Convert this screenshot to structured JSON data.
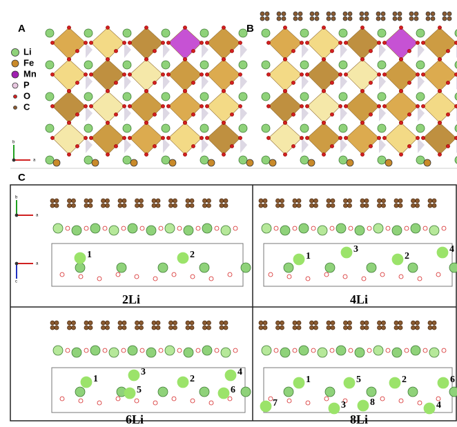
{
  "panels": {
    "A": "A",
    "B": "B",
    "C": "C"
  },
  "legend": [
    "Li",
    "Fe",
    "Mn",
    "P",
    "O",
    "C"
  ],
  "axes_A": {
    "b": "b",
    "a": "a"
  },
  "axes_C": {
    "top": {
      "b": "b",
      "a": "a"
    },
    "bottom": {
      "a": "a",
      "c": "c"
    }
  },
  "subpanels": [
    {
      "label": "2Li",
      "sites": [
        "1",
        "2"
      ]
    },
    {
      "label": "4Li",
      "sites": [
        "1",
        "3",
        "2",
        "4"
      ]
    },
    {
      "label": "6Li",
      "sites": [
        "1",
        "3",
        "5",
        "2",
        "4",
        "6"
      ]
    },
    {
      "label": "8Li",
      "sites": [
        "1",
        "5",
        "2",
        "6",
        "7",
        "3",
        "8",
        "4"
      ]
    }
  ]
}
